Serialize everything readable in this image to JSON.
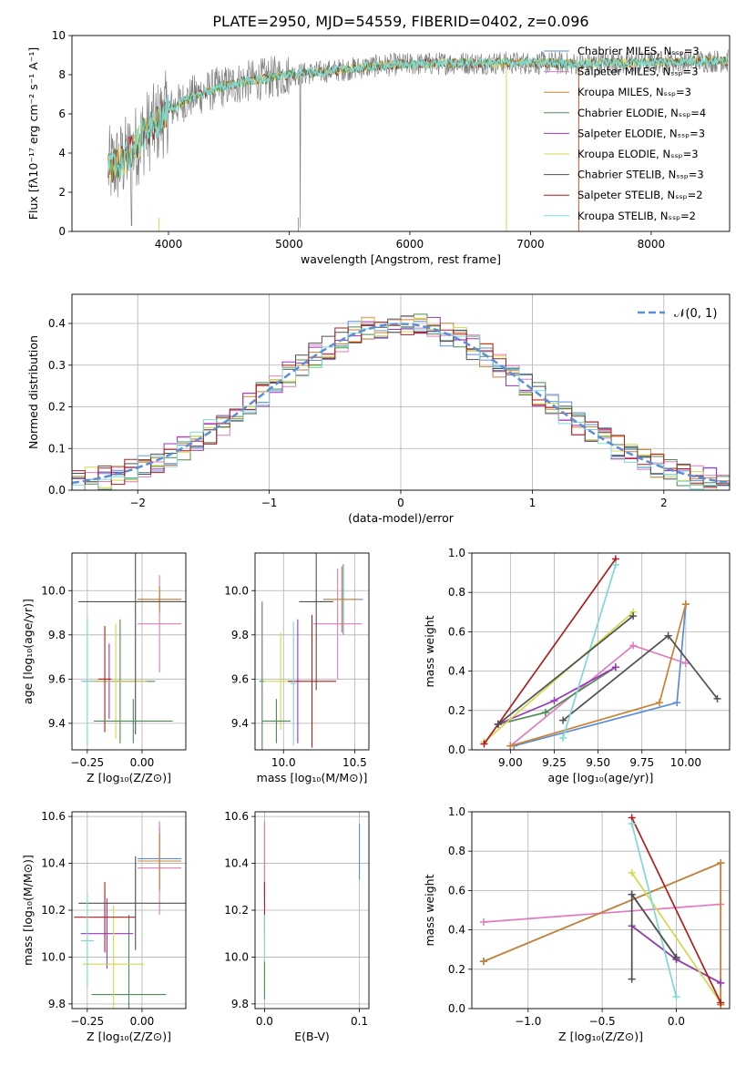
{
  "figure_title": "PLATE=2950, MJD=54559, FIBERID=0402, z=0.096",
  "colors": {
    "Chabrier MILES": "#5b8ed8",
    "Salpeter MILES": "#e07bbf",
    "Kroupa MILES": "#c9822f",
    "Chabrier ELODIE": "#4e8a55",
    "Salpeter ELODIE": "#9a36b8",
    "Kroupa ELODIE": "#d2d84c",
    "Chabrier STELIB": "#505050",
    "Salpeter STELIB": "#b11c1c",
    "Kroupa STELIB": "#7fd8d8",
    "data": "#808080",
    "normal_curve": "#5b8ed8",
    "grid": "#b0b0b0"
  },
  "chart_data": [
    {
      "panel": "spectrum",
      "type": "line",
      "xlabel": "wavelength [Angstrom, rest frame]",
      "ylabel": "Flux [fλ10⁻¹⁷ erg cm⁻² s⁻¹ A⁻¹]",
      "xlim": [
        3200,
        8650
      ],
      "ylim": [
        0,
        10
      ],
      "xticks": [
        4000,
        5000,
        6000,
        7000,
        8000
      ],
      "yticks": [
        0,
        2,
        4,
        6,
        8,
        10
      ],
      "grid": false,
      "legend_position": "right",
      "legend": [
        "Chabrier MILES, Nₛₛₚ=3",
        "Salpeter MILES, Nₛₛₚ=3",
        "Kroupa MILES, Nₛₛₚ=3",
        "Chabrier ELODIE, Nₛₛₚ=4",
        "Salpeter ELODIE, Nₛₛₚ=3",
        "Kroupa ELODIE, Nₛₛₚ=3",
        "Chabrier STELIB, Nₛₛₚ=3",
        "Salpeter STELIB, Nₛₛₚ=2",
        "Kroupa STELIB, Nₛₛₚ=2"
      ],
      "continuum": {
        "x": [
          3500,
          3600,
          3700,
          3800,
          3900,
          4000,
          4200,
          4400,
          4600,
          4800,
          5000,
          5200,
          5500,
          5800,
          6100,
          6400,
          6700,
          7000,
          7200,
          7400,
          7600,
          7800,
          8000,
          8200,
          8400,
          8640
        ],
        "y": [
          3.2,
          3.5,
          4.1,
          5.0,
          5.5,
          6.2,
          6.9,
          7.3,
          7.6,
          7.8,
          8.0,
          8.1,
          8.3,
          8.5,
          8.55,
          8.6,
          8.6,
          8.6,
          8.6,
          8.55,
          8.6,
          8.6,
          8.65,
          8.65,
          8.7,
          8.7
        ]
      }
    },
    {
      "panel": "residuals",
      "type": "step",
      "xlabel": "(data-model)/error",
      "ylabel": "Normed distribution",
      "xlim": [
        -2.5,
        2.5
      ],
      "ylim": [
        0,
        0.47
      ],
      "xticks": [
        -2,
        -1,
        0,
        1,
        2
      ],
      "yticks": [
        0.0,
        0.1,
        0.2,
        0.3,
        0.4
      ],
      "grid": true,
      "legend_position": "top-right",
      "legend": [
        "𝒩(0, 1)"
      ],
      "bin_width": 0.1
    },
    {
      "panel": "age-vs-Z",
      "type": "errorbar",
      "xlabel": "Z [log₁₀(Z/Z⊙)]",
      "ylabel": "age  [log₁₀(age/yr)]",
      "xlim": [
        -0.32,
        0.2
      ],
      "ylim": [
        9.28,
        10.17
      ],
      "xticks": [
        -0.25,
        0.0
      ],
      "yticks": [
        9.4,
        9.6,
        9.8,
        10.0
      ],
      "grid": true,
      "points": [
        {
          "series": "Chabrier MILES",
          "x": 0.08,
          "y": 9.96,
          "xerr": 0.1,
          "yerr": 0.04
        },
        {
          "series": "Salpeter MILES",
          "x": 0.08,
          "y": 9.85,
          "xerr": 0.1,
          "yerr": 0.22
        },
        {
          "series": "Kroupa MILES",
          "x": 0.08,
          "y": 9.96,
          "xerr": 0.1,
          "yerr": 0.06
        },
        {
          "series": "Chabrier ELODIE",
          "x": -0.1,
          "y": 9.59,
          "xerr": 0.16,
          "yerr": 0.28
        },
        {
          "series": "Salpeter ELODIE",
          "x": -0.15,
          "y": 9.59,
          "xerr": 0.12,
          "yerr": 0.17
        },
        {
          "series": "Kroupa ELODIE",
          "x": -0.12,
          "y": 9.59,
          "xerr": 0.14,
          "yerr": 0.26
        },
        {
          "series": "Chabrier STELIB",
          "x": -0.03,
          "y": 9.95,
          "xerr": 0.26,
          "yerr": 0.6
        },
        {
          "series": "Salpeter STELIB",
          "x": -0.17,
          "y": 9.6,
          "xerr": 0.03,
          "yerr": 0.24
        },
        {
          "series": "Kroupa STELIB",
          "x": -0.25,
          "y": 9.59,
          "xerr": 0.03,
          "yerr": 0.29
        },
        {
          "series": "Chabrier ELODIE",
          "x": -0.04,
          "y": 9.41,
          "xerr": 0.18,
          "yerr": 0.1
        }
      ]
    },
    {
      "panel": "age-vs-mass",
      "type": "errorbar",
      "xlabel": "mass [log₁₀(M/M⊙)]",
      "ylabel": "",
      "xlim": [
        9.8,
        10.6
      ],
      "ylim": [
        9.28,
        10.17
      ],
      "xticks": [
        10.0,
        10.5
      ],
      "yticks": [
        9.4,
        9.6,
        9.8,
        10.0
      ],
      "grid": true,
      "points": [
        {
          "series": "Chabrier MILES",
          "x": 10.42,
          "y": 9.96,
          "xerr": 0.14,
          "yerr": 0.16
        },
        {
          "series": "Salpeter MILES",
          "x": 10.38,
          "y": 9.85,
          "xerr": 0.17,
          "yerr": 0.25
        },
        {
          "series": "Kroupa MILES",
          "x": 10.41,
          "y": 9.96,
          "xerr": 0.12,
          "yerr": 0.15
        },
        {
          "series": "Chabrier ELODIE",
          "x": 9.85,
          "y": 9.59,
          "xerr": 0.02,
          "yerr": 0.36
        },
        {
          "series": "Salpeter ELODIE",
          "x": 10.1,
          "y": 9.59,
          "xerr": 0.01,
          "yerr": 0.28
        },
        {
          "series": "Kroupa ELODIE",
          "x": 9.98,
          "y": 9.59,
          "xerr": 0.12,
          "yerr": 0.22
        },
        {
          "series": "Chabrier STELIB",
          "x": 10.23,
          "y": 9.95,
          "xerr": 0.12,
          "yerr": 0.4
        },
        {
          "series": "Salpeter STELIB",
          "x": 10.2,
          "y": 9.59,
          "xerr": 0.17,
          "yerr": 0.3
        },
        {
          "series": "Kroupa STELIB",
          "x": 10.07,
          "y": 9.58,
          "xerr": 0.02,
          "yerr": 0.28
        },
        {
          "series": "Chabrier ELODIE",
          "x": 9.95,
          "y": 9.41,
          "xerr": 0.1,
          "yerr": 0.1
        }
      ]
    },
    {
      "panel": "weight-vs-age",
      "type": "line",
      "xlabel": "age  [log₁₀(age/yr)]",
      "ylabel": "mass weight",
      "xlim": [
        8.78,
        10.25
      ],
      "ylim": [
        0,
        1
      ],
      "xticks": [
        9.0,
        9.25,
        9.5,
        9.75,
        10.0
      ],
      "yticks": [
        0.0,
        0.2,
        0.4,
        0.6,
        0.8,
        1.0
      ],
      "grid": true,
      "series": [
        {
          "name": "Chabrier MILES",
          "x": [
            9.02,
            9.95,
            10.0
          ],
          "y": [
            0.02,
            0.24,
            0.74
          ]
        },
        {
          "name": "Salpeter MILES",
          "x": [
            9.0,
            9.7,
            10.0
          ],
          "y": [
            0.02,
            0.53,
            0.44
          ]
        },
        {
          "name": "Kroupa MILES",
          "x": [
            9.0,
            9.85,
            10.0
          ],
          "y": [
            0.02,
            0.24,
            0.74
          ]
        },
        {
          "name": "Chabrier ELODIE",
          "x": [
            8.93,
            9.2,
            9.6
          ],
          "y": [
            0.13,
            0.19,
            0.42
          ]
        },
        {
          "name": "Salpeter ELODIE",
          "x": [
            8.93,
            9.25,
            9.6
          ],
          "y": [
            0.13,
            0.25,
            0.42
          ]
        },
        {
          "name": "Kroupa ELODIE",
          "x": [
            8.85,
            9.7
          ],
          "y": [
            0.04,
            0.7
          ]
        },
        {
          "name": "Chabrier STELIB",
          "x": [
            9.3,
            9.9,
            10.18
          ],
          "y": [
            0.15,
            0.58,
            0.26
          ]
        },
        {
          "name": "Salpeter STELIB",
          "x": [
            8.85,
            9.6
          ],
          "y": [
            0.03,
            0.97
          ]
        },
        {
          "name": "Kroupa STELIB",
          "x": [
            9.3,
            9.6
          ],
          "y": [
            0.06,
            0.94
          ]
        },
        {
          "name": "Chabrier STELIB",
          "x": [
            8.93,
            9.7
          ],
          "y": [
            0.13,
            0.68
          ]
        }
      ]
    },
    {
      "panel": "mass-vs-Z",
      "type": "errorbar",
      "xlabel": "Z [log₁₀(Z/Z⊙)]",
      "ylabel": "mass [log₁₀(M/M⊙)]",
      "xlim": [
        -0.32,
        0.2
      ],
      "ylim": [
        9.78,
        10.62
      ],
      "xticks": [
        -0.25,
        0.0
      ],
      "yticks": [
        9.8,
        10.0,
        10.2,
        10.4,
        10.6
      ],
      "grid": true,
      "points": [
        {
          "series": "Chabrier MILES",
          "x": 0.08,
          "y": 10.42,
          "xerr": 0.1,
          "yerr": 0.14
        },
        {
          "series": "Salpeter MILES",
          "x": 0.08,
          "y": 10.38,
          "xerr": 0.1,
          "yerr": 0.2
        },
        {
          "series": "Kroupa MILES",
          "x": 0.08,
          "y": 10.41,
          "xerr": 0.1,
          "yerr": 0.12
        },
        {
          "series": "Chabrier ELODIE",
          "x": -0.06,
          "y": 9.84,
          "xerr": 0.17,
          "yerr": 0.34
        },
        {
          "series": "Salpeter ELODIE",
          "x": -0.16,
          "y": 10.1,
          "xerr": 0.12,
          "yerr": 0.15
        },
        {
          "series": "Kroupa ELODIE",
          "x": -0.13,
          "y": 9.97,
          "xerr": 0.14,
          "yerr": 0.25
        },
        {
          "series": "Chabrier STELIB",
          "x": -0.03,
          "y": 10.23,
          "xerr": 0.26,
          "yerr": 0.2
        },
        {
          "series": "Salpeter STELIB",
          "x": -0.17,
          "y": 10.17,
          "xerr": 0.14,
          "yerr": 0.15
        },
        {
          "series": "Kroupa STELIB",
          "x": -0.25,
          "y": 10.07,
          "xerr": 0.03,
          "yerr": 0.2
        }
      ]
    },
    {
      "panel": "mass-vs-EBV",
      "type": "errorbar",
      "xlabel": "E(B-V)",
      "ylabel": "",
      "xlim": [
        -0.01,
        0.11
      ],
      "ylim": [
        9.78,
        10.62
      ],
      "xticks": [
        0.0,
        0.1
      ],
      "yticks": [
        9.8,
        10.0,
        10.2,
        10.4,
        10.6
      ],
      "grid": true,
      "points": [
        {
          "series": "Chabrier MILES",
          "x": 0.1,
          "y": 10.45,
          "xerr": 0,
          "yerr": 0.12
        },
        {
          "series": "Kroupa MILES",
          "x": 0.0,
          "y": 10.42,
          "xerr": 0,
          "yerr": 0.15
        },
        {
          "series": "Salpeter MILES",
          "x": 0.0,
          "y": 10.4,
          "xerr": 0,
          "yerr": 0.18
        },
        {
          "series": "Salpeter STELIB",
          "x": 0.0,
          "y": 10.2,
          "xerr": 0,
          "yerr": 0.12
        },
        {
          "series": "Kroupa ELODIE",
          "x": 0.0,
          "y": 9.98,
          "xerr": 0,
          "yerr": 0.12
        },
        {
          "series": "Chabrier ELODIE",
          "x": 0.0,
          "y": 9.9,
          "xerr": 0,
          "yerr": 0.08
        },
        {
          "series": "Kroupa STELIB",
          "x": 0.0,
          "y": 10.08,
          "xerr": 0,
          "yerr": 0.1
        }
      ]
    },
    {
      "panel": "weight-vs-Z",
      "type": "line",
      "xlabel": "Z [log₁₀(Z/Z⊙)]",
      "ylabel": "mass weight",
      "xlim": [
        -1.38,
        0.36
      ],
      "ylim": [
        0,
        1
      ],
      "xticks": [
        -1.0,
        -0.5,
        0.0
      ],
      "yticks": [
        0.0,
        0.2,
        0.4,
        0.6,
        0.8,
        1.0
      ],
      "grid": true,
      "series": [
        {
          "name": "Chabrier MILES",
          "x": [
            -1.3,
            0.3,
            0.3
          ],
          "y": [
            0.24,
            0.74,
            0.02
          ]
        },
        {
          "name": "Salpeter MILES",
          "x": [
            -1.3,
            0.3
          ],
          "y": [
            0.44,
            0.53
          ]
        },
        {
          "name": "Kroupa MILES",
          "x": [
            -1.3,
            0.3,
            0.3
          ],
          "y": [
            0.24,
            0.74,
            0.02
          ]
        },
        {
          "name": "Chabrier ELODIE",
          "x": [
            -0.3,
            0.0,
            0.3
          ],
          "y": [
            0.42,
            0.25,
            0.13
          ]
        },
        {
          "name": "Salpeter ELODIE",
          "x": [
            -0.3,
            0.0,
            0.3
          ],
          "y": [
            0.42,
            0.25,
            0.13
          ]
        },
        {
          "name": "Kroupa ELODIE",
          "x": [
            -0.3,
            0.3
          ],
          "y": [
            0.69,
            0.03
          ]
        },
        {
          "name": "Chabrier STELIB",
          "x": [
            -0.3,
            -0.3,
            0.0
          ],
          "y": [
            0.15,
            0.58,
            0.26
          ]
        },
        {
          "name": "Salpeter STELIB",
          "x": [
            -0.3,
            0.3
          ],
          "y": [
            0.97,
            0.03
          ]
        },
        {
          "name": "Kroupa STELIB",
          "x": [
            -0.3,
            0.0
          ],
          "y": [
            0.94,
            0.06
          ]
        },
        {
          "name": "Chabrier STELIB",
          "x": [
            -0.3,
            0.0
          ],
          "y": [
            0.58,
            0.26
          ]
        }
      ]
    }
  ]
}
